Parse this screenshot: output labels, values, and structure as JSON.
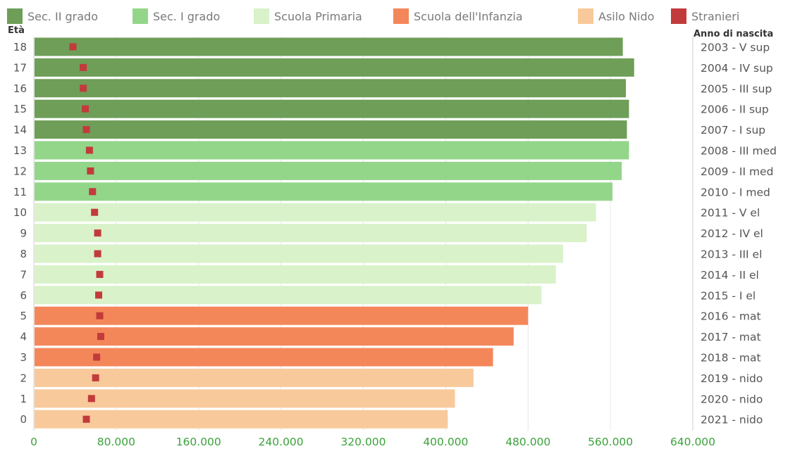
{
  "chart_data": {
    "type": "bar",
    "orientation": "horizontal",
    "y_axis_label": "Età",
    "secondary_axis_label": "Anno di nascita",
    "x_range": [
      0,
      640000
    ],
    "x_ticks": [
      "0",
      "80.000",
      "160.000",
      "240.000",
      "320.000",
      "400.000",
      "480.000",
      "560.000",
      "640.000"
    ],
    "x_tick_values": [
      0,
      80000,
      160000,
      240000,
      320000,
      400000,
      480000,
      560000,
      640000
    ],
    "grid": true,
    "legend_position": "top",
    "legend": [
      {
        "key": "sec2",
        "label": "Sec. II grado",
        "color": "#6e9e57"
      },
      {
        "key": "sec1",
        "label": "Sec. I grado",
        "color": "#93d68a"
      },
      {
        "key": "prim",
        "label": "Scuola Primaria",
        "color": "#d9f2c9"
      },
      {
        "key": "inf",
        "label": "Scuola dell'Infanzia",
        "color": "#f4875a"
      },
      {
        "key": "nido",
        "label": "Asilo Nido",
        "color": "#f8c99a"
      },
      {
        "key": "stran",
        "label": "Stranieri",
        "color": "#c23b3b"
      }
    ],
    "rows": [
      {
        "age": "18",
        "year_label": "2003 - V sup",
        "group": "sec2",
        "value": 572000,
        "stranieri": 38000
      },
      {
        "age": "17",
        "year_label": "2004 - IV sup",
        "group": "sec2",
        "value": 583000,
        "stranieri": 48000
      },
      {
        "age": "16",
        "year_label": "2005 - III sup",
        "group": "sec2",
        "value": 575000,
        "stranieri": 48000
      },
      {
        "age": "15",
        "year_label": "2006 - II sup",
        "group": "sec2",
        "value": 578000,
        "stranieri": 50000
      },
      {
        "age": "14",
        "year_label": "2007 - I sup",
        "group": "sec2",
        "value": 576000,
        "stranieri": 51000
      },
      {
        "age": "13",
        "year_label": "2008 - III med",
        "group": "sec1",
        "value": 578000,
        "stranieri": 54000
      },
      {
        "age": "12",
        "year_label": "2009 - II med",
        "group": "sec1",
        "value": 571000,
        "stranieri": 55000
      },
      {
        "age": "11",
        "year_label": "2010 - I med",
        "group": "sec1",
        "value": 562000,
        "stranieri": 57000
      },
      {
        "age": "10",
        "year_label": "2011 - V el",
        "group": "prim",
        "value": 546000,
        "stranieri": 59000
      },
      {
        "age": "9",
        "year_label": "2012 - IV el",
        "group": "prim",
        "value": 537000,
        "stranieri": 62000
      },
      {
        "age": "8",
        "year_label": "2013 - III el",
        "group": "prim",
        "value": 514000,
        "stranieri": 62000
      },
      {
        "age": "7",
        "year_label": "2014 - II el",
        "group": "prim",
        "value": 507000,
        "stranieri": 64000
      },
      {
        "age": "6",
        "year_label": "2015 - I el",
        "group": "prim",
        "value": 493000,
        "stranieri": 63000
      },
      {
        "age": "5",
        "year_label": "2016 - mat",
        "group": "inf",
        "value": 480000,
        "stranieri": 64000
      },
      {
        "age": "4",
        "year_label": "2017 - mat",
        "group": "inf",
        "value": 466000,
        "stranieri": 65000
      },
      {
        "age": "3",
        "year_label": "2018 - mat",
        "group": "inf",
        "value": 446000,
        "stranieri": 61000
      },
      {
        "age": "2",
        "year_label": "2019 - nido",
        "group": "nido",
        "value": 427000,
        "stranieri": 60000
      },
      {
        "age": "1",
        "year_label": "2020 - nido",
        "group": "nido",
        "value": 409000,
        "stranieri": 56000
      },
      {
        "age": "0",
        "year_label": "2021 - nido",
        "group": "nido",
        "value": 402000,
        "stranieri": 51000
      }
    ]
  }
}
